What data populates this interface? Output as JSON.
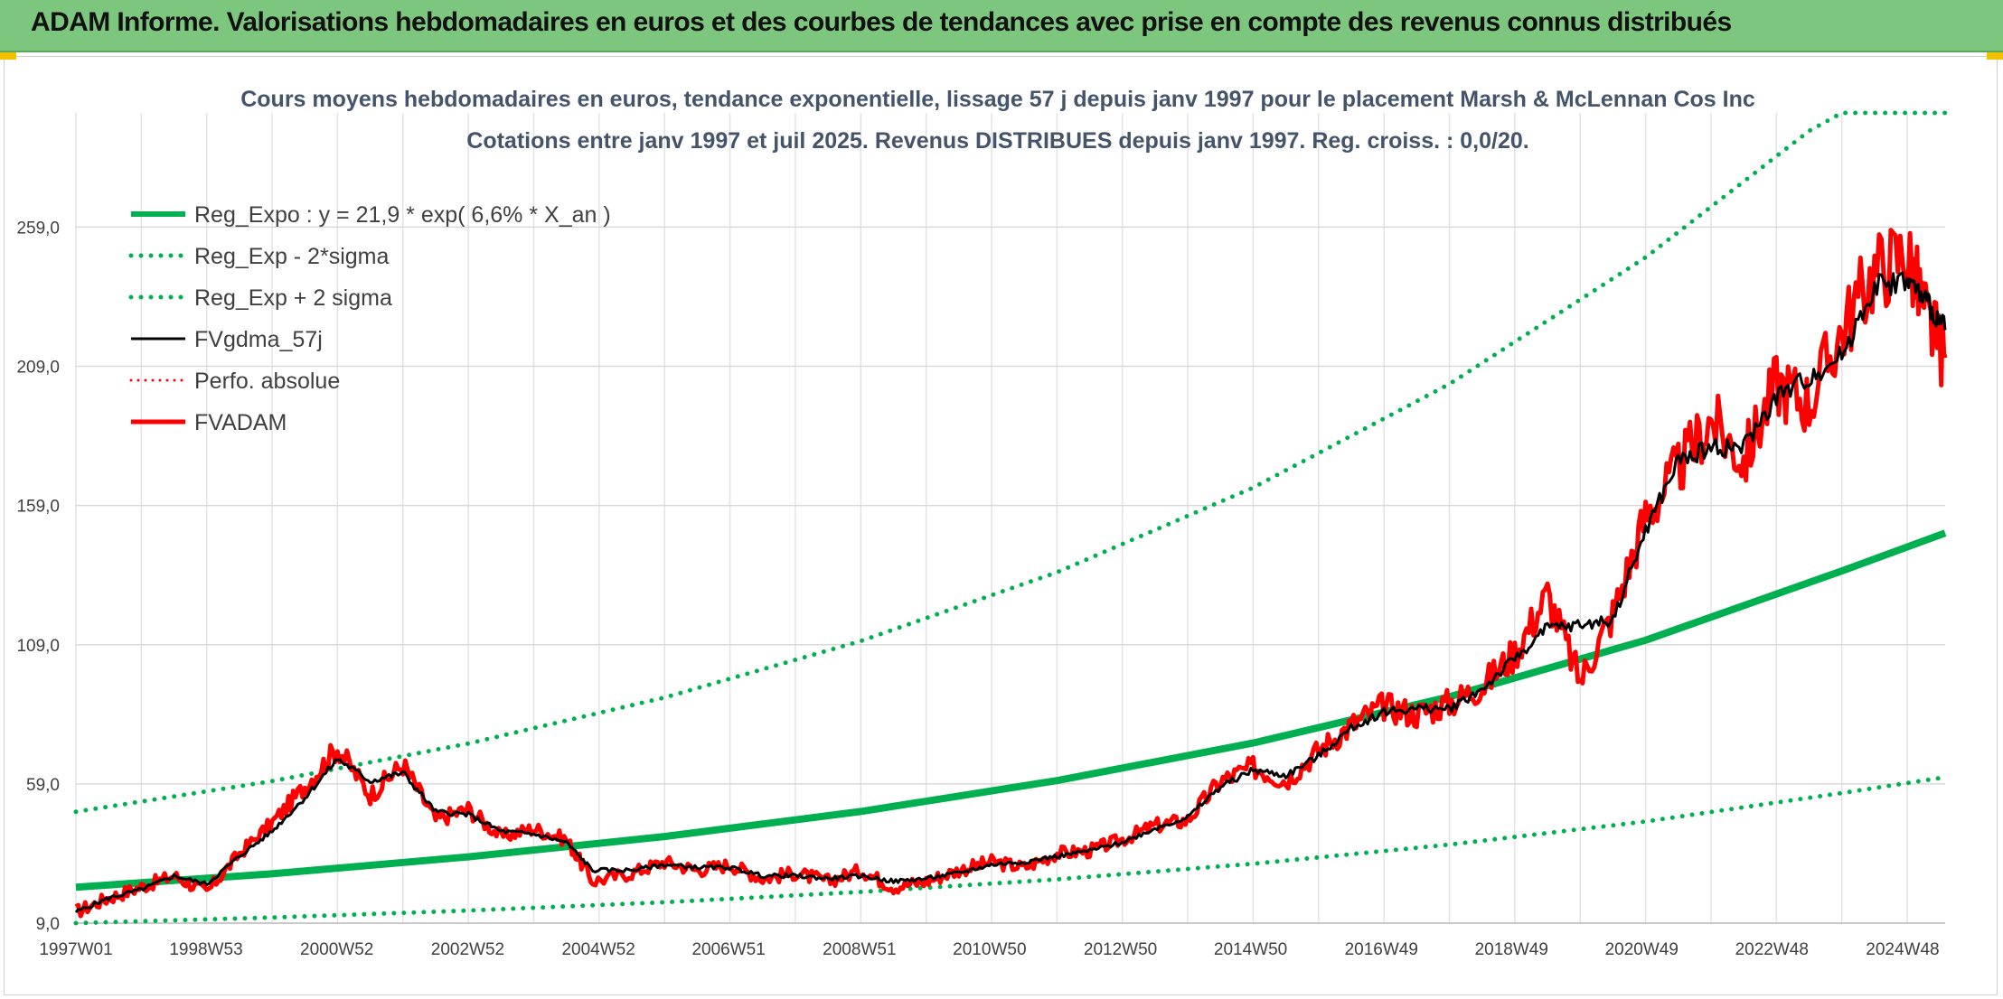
{
  "banner": {
    "title": "ADAM Informe. Valorisations hebdomadaires en euros et des courbes de tendances avec prise en compte des revenus connus distribués"
  },
  "colors": {
    "banner_bg": "#7dc67e",
    "reg_expo": "#00b050",
    "fvadam": "#ff0000",
    "fvgdma": "#000000",
    "title_text": "#44546a"
  },
  "chart_data": {
    "type": "line",
    "title": "Cours moyens hebdomadaires en euros, tendance exponentielle, lissage 57 j depuis janv 1997 pour le placement Marsh & McLennan Cos Inc",
    "subtitle": "Cotations entre janv 1997 et juil 2025. Revenus DISTRIBUES depuis janv 1997. Reg. croiss. : 0,0/20.",
    "xlabel": "",
    "ylabel": "",
    "x_range": [
      1997.0,
      2025.58
    ],
    "ylim": [
      9,
      300
    ],
    "y_ticks": [
      9,
      59,
      109,
      159,
      209,
      259
    ],
    "y_tick_labels": [
      "9,0",
      "59,0",
      "109,0",
      "159,0",
      "209,0",
      "259,0"
    ],
    "x_ticks": [
      1997.0,
      1998.99,
      2000.99,
      2002.99,
      2004.99,
      2006.98,
      2008.98,
      2010.97,
      2012.97,
      2014.96,
      2016.96,
      2018.95,
      2020.94,
      2022.93,
      2024.93
    ],
    "x_tick_labels": [
      "1997W01",
      "1998W53",
      "2000W52",
      "2002W52",
      "2004W52",
      "2006W51",
      "2008W51",
      "2010W50",
      "2012W50",
      "2014W50",
      "2016W49",
      "2018W49",
      "2020W49",
      "2022W48",
      "2024W48"
    ],
    "grid": true,
    "legend_position": "top-left",
    "legend": [
      {
        "label": "Reg_Expo : y = 21,9 * exp( 6,6% *  X_an )",
        "color": "#00b050",
        "style": "solid-thick"
      },
      {
        "label": "Reg_Exp - 2*sigma",
        "color": "#00b050",
        "style": "dotted"
      },
      {
        "label": "Reg_Exp + 2 sigma",
        "color": "#00b050",
        "style": "dotted"
      },
      {
        "label": "FVgdma_57j",
        "color": "#000000",
        "style": "solid"
      },
      {
        "label": "Perfo. absolue",
        "color": "#ff0000",
        "style": "dotted"
      },
      {
        "label": "FVADAM",
        "color": "#ff0000",
        "style": "solid-thick"
      }
    ],
    "series": [
      {
        "name": "Reg_Expo : y = 21,9 * exp( 6,6% *  X_an )",
        "x": [
          1997.0,
          2000.0,
          2003.0,
          2006.0,
          2009.0,
          2012.0,
          2015.0,
          2018.0,
          2021.0,
          2024.0,
          2025.58
        ],
        "y": [
          21.9,
          26.7,
          32.8,
          40.1,
          49.1,
          60.2,
          73.7,
          90.3,
          110.6,
          135.5,
          149.1
        ]
      },
      {
        "name": "Reg_Exp - 2*sigma",
        "x": [
          1997.0,
          2000.0,
          2003.0,
          2006.0,
          2009.0,
          2012.0,
          2015.0,
          2018.0,
          2021.0,
          2024.0,
          2025.58
        ],
        "y": [
          9.0,
          11.0,
          13.5,
          16.5,
          20.2,
          24.7,
          30.3,
          37.2,
          45.5,
          55.7,
          61.4
        ]
      },
      {
        "name": "Reg_Exp + 2 sigma",
        "x": [
          1997.0,
          2000.0,
          2003.0,
          2006.0,
          2009.0,
          2012.0,
          2015.0,
          2018.0,
          2021.0,
          2023.5,
          2024.0,
          2025.58
        ],
        "y": [
          49.0,
          60.0,
          73.5,
          90.0,
          110.3,
          135.0,
          165.4,
          202.6,
          248.1,
          293.5,
          300.0,
          300.0
        ]
      },
      {
        "name": "FVgdma_57j",
        "x": [
          1997.0,
          1997.5,
          1998.0,
          1998.5,
          1999.0,
          1999.5,
          2000.0,
          2000.5,
          2001.0,
          2001.5,
          2002.0,
          2002.5,
          2003.0,
          2003.5,
          2004.0,
          2004.5,
          2004.9,
          2005.5,
          2006.0,
          2006.5,
          2007.0,
          2007.5,
          2008.0,
          2008.5,
          2009.0,
          2009.5,
          2010.0,
          2010.5,
          2011.0,
          2011.5,
          2012.0,
          2012.5,
          2013.0,
          2013.5,
          2014.0,
          2014.5,
          2015.0,
          2015.5,
          2016.0,
          2016.5,
          2017.0,
          2017.5,
          2018.0,
          2018.5,
          2019.0,
          2019.5,
          2020.0,
          2020.5,
          2021.0,
          2021.5,
          2022.0,
          2022.5,
          2023.0,
          2023.5,
          2024.0,
          2024.5,
          2025.0,
          2025.3,
          2025.58
        ],
        "y": [
          13.0,
          18.0,
          21.0,
          26.0,
          23.0,
          33.0,
          42.0,
          54.0,
          68.0,
          60.0,
          63.0,
          49.0,
          48.0,
          42.0,
          41.0,
          38.0,
          28.0,
          28.0,
          30.0,
          29.0,
          29.0,
          26.0,
          26.0,
          25.0,
          26.0,
          24.0,
          25.0,
          27.0,
          30.0,
          31.0,
          33.0,
          35.0,
          38.0,
          43.0,
          47.0,
          58.0,
          64.0,
          62.0,
          69.0,
          79.0,
          85.0,
          86.0,
          86.0,
          93.0,
          104.0,
          115.0,
          116.0,
          118.0,
          150.0,
          175.0,
          180.0,
          180.0,
          198.0,
          205.0,
          213.0,
          238.0,
          240.0,
          232.0,
          222.0
        ]
      },
      {
        "name": "FVADAM",
        "x": [
          1997.0,
          1997.5,
          1998.0,
          1998.5,
          1999.0,
          1999.5,
          2000.0,
          2000.5,
          2001.0,
          2001.5,
          2002.0,
          2002.5,
          2003.0,
          2003.5,
          2004.0,
          2004.5,
          2004.9,
          2005.5,
          2006.0,
          2006.5,
          2007.0,
          2007.5,
          2008.0,
          2008.5,
          2009.0,
          2009.5,
          2010.0,
          2010.5,
          2011.0,
          2011.5,
          2012.0,
          2012.5,
          2013.0,
          2013.5,
          2014.0,
          2014.5,
          2015.0,
          2015.5,
          2016.0,
          2016.5,
          2017.0,
          2017.5,
          2018.0,
          2018.5,
          2019.0,
          2019.5,
          2020.0,
          2020.5,
          2021.0,
          2021.5,
          2022.0,
          2022.5,
          2023.0,
          2023.5,
          2024.0,
          2024.5,
          2025.0,
          2025.3,
          2025.58
        ],
        "y": [
          13.0,
          18.0,
          22.0,
          26.0,
          20.0,
          34.0,
          45.0,
          58.0,
          72.0,
          55.0,
          66.0,
          46.0,
          50.0,
          40.0,
          43.0,
          39.0,
          24.0,
          27.0,
          31.0,
          28.0,
          30.0,
          25.0,
          27.0,
          24.0,
          28.0,
          22.0,
          24.0,
          28.0,
          31.0,
          29.0,
          34.0,
          35.0,
          39.0,
          44.0,
          46.0,
          60.0,
          65.0,
          60.0,
          71.0,
          80.0,
          87.0,
          84.0,
          88.0,
          94.0,
          106.0,
          127.0,
          96.0,
          120.0,
          155.0,
          172.0,
          190.0,
          175.0,
          203.0,
          196.0,
          222.0,
          243.0,
          250.0,
          226.0,
          212.0
        ]
      }
    ]
  }
}
